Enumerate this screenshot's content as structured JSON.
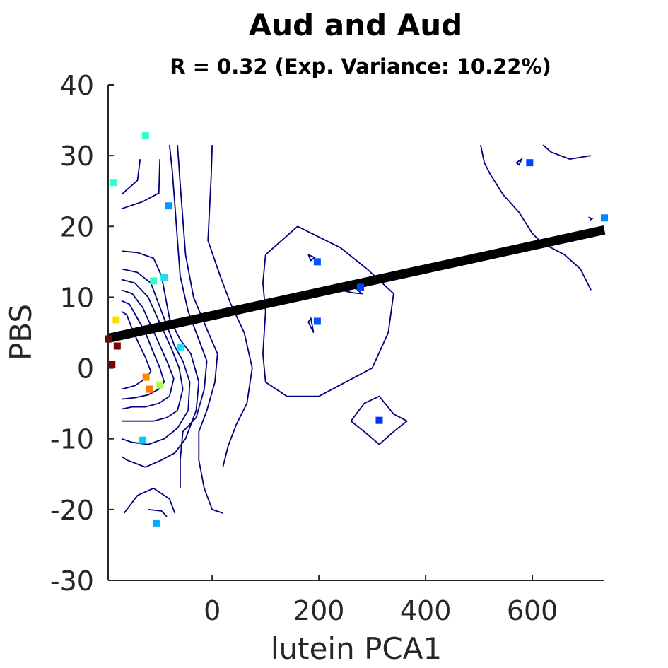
{
  "chart_data": {
    "type": "scatter",
    "title": "Aud and Aud",
    "subtitle": "R = 0.32 (Exp. Variance: 10.22%)",
    "xlabel": "lutein PCA1",
    "ylabel": "PBS",
    "xlim": [
      -195,
      735
    ],
    "ylim": [
      -30,
      40
    ],
    "xticks": [
      0,
      200,
      400,
      600
    ],
    "xtick_labels": [
      "0",
      "200",
      "400",
      "600"
    ],
    "yticks": [
      -30,
      -20,
      -10,
      0,
      10,
      20,
      30,
      40
    ],
    "ytick_labels": [
      "-30",
      "-20",
      "-10",
      "0",
      "10",
      "20",
      "30",
      "40"
    ],
    "grid": false,
    "colors": {
      "contour": "#00007f",
      "fit_line": "#000000",
      "axis": "#262626"
    },
    "points": [
      {
        "x": -125,
        "y": 32.8,
        "color": "#33ffcc"
      },
      {
        "x": -185,
        "y": 26.2,
        "color": "#33ffcc"
      },
      {
        "x": -82,
        "y": 22.9,
        "color": "#0099ff"
      },
      {
        "x": -110,
        "y": 12.3,
        "color": "#33ffcc"
      },
      {
        "x": -90,
        "y": 12.8,
        "color": "#22ddee"
      },
      {
        "x": -180,
        "y": 6.8,
        "color": "#ffdd00"
      },
      {
        "x": -195,
        "y": 4.1,
        "color": "#7f0000"
      },
      {
        "x": -178,
        "y": 3.1,
        "color": "#7f0000"
      },
      {
        "x": -188,
        "y": 0.5,
        "color": "#7f0000"
      },
      {
        "x": -60,
        "y": 2.9,
        "color": "#22ddee"
      },
      {
        "x": -124,
        "y": -1.3,
        "color": "#ff8800"
      },
      {
        "x": -118,
        "y": -3.0,
        "color": "#ff7700"
      },
      {
        "x": -98,
        "y": -2.4,
        "color": "#aaff55"
      },
      {
        "x": -130,
        "y": -10.2,
        "color": "#00ccff"
      },
      {
        "x": -105,
        "y": -21.9,
        "color": "#00aaff"
      },
      {
        "x": 197,
        "y": 15.0,
        "color": "#0055ff"
      },
      {
        "x": 197,
        "y": 6.6,
        "color": "#0055ff"
      },
      {
        "x": 278,
        "y": 11.4,
        "color": "#0044ff"
      },
      {
        "x": 313,
        "y": -7.4,
        "color": "#0033ff"
      },
      {
        "x": 595,
        "y": 29.0,
        "color": "#0044ff"
      },
      {
        "x": 735,
        "y": 21.2,
        "color": "#0088ff"
      }
    ],
    "fit_line": {
      "x": [
        -195,
        735
      ],
      "y": [
        4.2,
        19.5
      ]
    },
    "contours": [
      [
        [
          -170,
          24.5
        ],
        [
          -140,
          26.5
        ],
        [
          -135,
          29.5
        ]
      ],
      [
        [
          -170,
          22.5
        ],
        [
          -130,
          23.5
        ],
        [
          -100,
          24.7
        ],
        [
          -98,
          29.5
        ]
      ],
      [
        [
          -170,
          16.5
        ],
        [
          -140,
          16.3
        ],
        [
          -110,
          15.5
        ],
        [
          -95,
          13
        ],
        [
          -80,
          7
        ],
        [
          -60,
          4
        ],
        [
          -40,
          2
        ],
        [
          -25,
          -2
        ],
        [
          -30,
          -6
        ],
        [
          -50,
          -10
        ],
        [
          -70,
          -12
        ],
        [
          -95,
          -13
        ],
        [
          -125,
          -14
        ],
        [
          -160,
          -13
        ],
        [
          -170,
          -12.5
        ]
      ],
      [
        [
          -170,
          14
        ],
        [
          -140,
          13.5
        ],
        [
          -115,
          12
        ],
        [
          -100,
          9
        ],
        [
          -85,
          6
        ],
        [
          -70,
          3
        ],
        [
          -55,
          1
        ],
        [
          -42,
          -2
        ],
        [
          -45,
          -6
        ],
        [
          -65,
          -8.5
        ],
        [
          -90,
          -10
        ],
        [
          -120,
          -10.8
        ],
        [
          -150,
          -10.5
        ],
        [
          -170,
          -10
        ]
      ],
      [
        [
          -170,
          12.5
        ],
        [
          -145,
          12
        ],
        [
          -120,
          10
        ],
        [
          -105,
          7.5
        ],
        [
          -90,
          5
        ],
        [
          -75,
          2.5
        ],
        [
          -62,
          0
        ],
        [
          -55,
          -3
        ],
        [
          -65,
          -6
        ],
        [
          -85,
          -7
        ],
        [
          -110,
          -7.5
        ],
        [
          -140,
          -7.5
        ],
        [
          -170,
          -7.5
        ]
      ],
      [
        [
          -170,
          11
        ],
        [
          -150,
          10.5
        ],
        [
          -130,
          8.5
        ],
        [
          -115,
          6
        ],
        [
          -100,
          3.5
        ],
        [
          -85,
          1
        ],
        [
          -72,
          -1.5
        ],
        [
          -80,
          -4
        ],
        [
          -100,
          -5
        ],
        [
          -125,
          -5.5
        ],
        [
          -150,
          -5.5
        ],
        [
          -170,
          -5.8
        ]
      ],
      [
        [
          -170,
          9.5
        ],
        [
          -155,
          9
        ],
        [
          -140,
          7
        ],
        [
          -125,
          5
        ],
        [
          -112,
          2.5
        ],
        [
          -98,
          0
        ],
        [
          -90,
          -2
        ],
        [
          -100,
          -3
        ],
        [
          -120,
          -3.8
        ],
        [
          -145,
          -4.2
        ],
        [
          -170,
          -4.4
        ]
      ],
      [
        [
          -170,
          8
        ],
        [
          -160,
          7.5
        ],
        [
          -150,
          5.5
        ],
        [
          -138,
          3.5
        ],
        [
          -125,
          1.5
        ],
        [
          -115,
          -0.5
        ],
        [
          -125,
          -1.5
        ],
        [
          -145,
          -2.5
        ],
        [
          -170,
          -3
        ]
      ],
      [
        [
          -80,
          31.5
        ],
        [
          -75,
          28
        ],
        [
          -70,
          23
        ],
        [
          -65,
          18
        ],
        [
          -60,
          13
        ],
        [
          -45,
          8
        ],
        [
          -25,
          4
        ],
        [
          -10,
          1
        ],
        [
          -15,
          -3
        ],
        [
          -30,
          -7
        ],
        [
          -55,
          -9
        ],
        [
          -60,
          -13
        ],
        [
          -60,
          -17
        ]
      ],
      [
        [
          -65,
          31.5
        ],
        [
          -60,
          26
        ],
        [
          -55,
          21
        ],
        [
          -50,
          16
        ],
        [
          -35,
          10
        ],
        [
          -10,
          5.5
        ],
        [
          10,
          2
        ],
        [
          5,
          -2
        ],
        [
          -10,
          -6
        ],
        [
          -25,
          -9
        ],
        [
          -25,
          -13
        ],
        [
          -15,
          -17
        ],
        [
          0,
          -20
        ],
        [
          20,
          -20.5
        ]
      ],
      [
        [
          0,
          31.5
        ],
        [
          -2,
          27
        ],
        [
          -8,
          18
        ],
        [
          15,
          13
        ],
        [
          35,
          9
        ],
        [
          60,
          5
        ],
        [
          75,
          0
        ],
        [
          65,
          -5
        ],
        [
          45,
          -8
        ],
        [
          30,
          -11
        ],
        [
          20,
          -14
        ]
      ],
      [
        [
          -165,
          -20.5
        ],
        [
          -140,
          -18
        ],
        [
          -110,
          -17
        ],
        [
          -80,
          -18.5
        ],
        [
          -70,
          -20.5
        ]
      ],
      [
        [
          -120,
          -20
        ],
        [
          -95,
          -20.2
        ],
        [
          -85,
          -21
        ]
      ],
      [
        [
          100,
          16
        ],
        [
          160,
          20
        ],
        [
          240,
          17
        ],
        [
          290,
          14
        ],
        [
          340,
          10.5
        ],
        [
          330,
          5
        ],
        [
          300,
          0
        ],
        [
          250,
          -2
        ],
        [
          200,
          -4
        ],
        [
          140,
          -4
        ],
        [
          100,
          -2
        ],
        [
          95,
          2
        ],
        [
          100,
          8
        ],
        [
          95,
          12
        ],
        [
          100,
          16
        ]
      ],
      [
        [
          180,
          16
        ],
        [
          192,
          15.6
        ],
        [
          185,
          15.2
        ],
        [
          180,
          16
        ]
      ],
      [
        [
          180,
          6.5
        ],
        [
          190,
          5
        ],
        [
          185,
          7
        ],
        [
          180,
          6.5
        ]
      ],
      [
        [
          240,
          11
        ],
        [
          255,
          11.5
        ],
        [
          270,
          11.2
        ],
        [
          280,
          10.5
        ],
        [
          265,
          10.6
        ],
        [
          240,
          11
        ]
      ],
      [
        [
          260,
          -7.5
        ],
        [
          285,
          -5
        ],
        [
          313,
          -4
        ],
        [
          340,
          -6.5
        ],
        [
          365,
          -7.5
        ],
        [
          340,
          -9
        ],
        [
          313,
          -10.8
        ],
        [
          285,
          -9
        ],
        [
          260,
          -7.5
        ]
      ],
      [
        [
          503,
          31.5
        ],
        [
          510,
          29
        ],
        [
          520,
          27.5
        ],
        [
          545,
          24.5
        ],
        [
          575,
          22
        ],
        [
          600,
          19
        ],
        [
          620,
          17.5
        ],
        [
          635,
          17
        ],
        [
          660,
          16
        ],
        [
          690,
          14
        ],
        [
          710,
          11
        ]
      ],
      [
        [
          570,
          29
        ],
        [
          580,
          29.5
        ],
        [
          575,
          28.7
        ],
        [
          570,
          29
        ]
      ],
      [
        [
          620,
          31.5
        ],
        [
          635,
          30.5
        ],
        [
          670,
          29.5
        ],
        [
          710,
          30
        ]
      ],
      [
        [
          705,
          21.3
        ],
        [
          712,
          21.1
        ],
        [
          708,
          20.9
        ]
      ]
    ]
  }
}
